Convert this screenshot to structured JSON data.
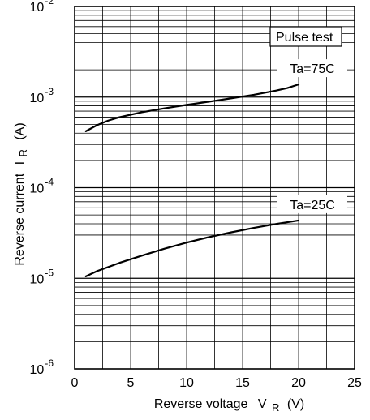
{
  "chart_data": {
    "type": "line",
    "xlabel": "Reverse voltage",
    "xlabel_symbol": "V",
    "xlabel_subscript": "R",
    "xlabel_unit": "(V)",
    "ylabel": "Reverse current",
    "ylabel_symbol": "I",
    "ylabel_subscript": "R",
    "ylabel_unit": "(A)",
    "xlim": [
      0,
      25
    ],
    "ylim": [
      1e-06,
      0.01
    ],
    "y_scale": "log",
    "grid": true,
    "x_ticks": [
      "0",
      "5",
      "10",
      "15",
      "20",
      "25"
    ],
    "y_ticks": [
      {
        "base": "10",
        "exp": "-6"
      },
      {
        "base": "10",
        "exp": "-5"
      },
      {
        "base": "10",
        "exp": "-4"
      },
      {
        "base": "10",
        "exp": "-3"
      },
      {
        "base": "10",
        "exp": "-2"
      }
    ],
    "annotations": [
      {
        "text": "Pulse test",
        "boxed": true
      }
    ],
    "series": [
      {
        "name": "Ta=75C",
        "x": [
          1,
          2,
          3,
          4,
          6,
          8,
          10,
          12,
          14,
          16,
          18,
          19,
          20
        ],
        "y": [
          0.00042,
          0.00049,
          0.00055,
          0.0006,
          0.00068,
          0.00075,
          0.00082,
          0.00089,
          0.00097,
          0.00106,
          0.00118,
          0.00126,
          0.00138
        ]
      },
      {
        "name": "Ta=25C",
        "x": [
          1,
          2,
          4,
          6,
          8,
          10,
          12,
          14,
          16,
          18,
          20
        ],
        "y": [
          1.05e-05,
          1.2e-05,
          1.48e-05,
          1.78e-05,
          2.12e-05,
          2.48e-05,
          2.85e-05,
          3.22e-05,
          3.6e-05,
          3.98e-05,
          4.35e-05
        ]
      }
    ]
  }
}
